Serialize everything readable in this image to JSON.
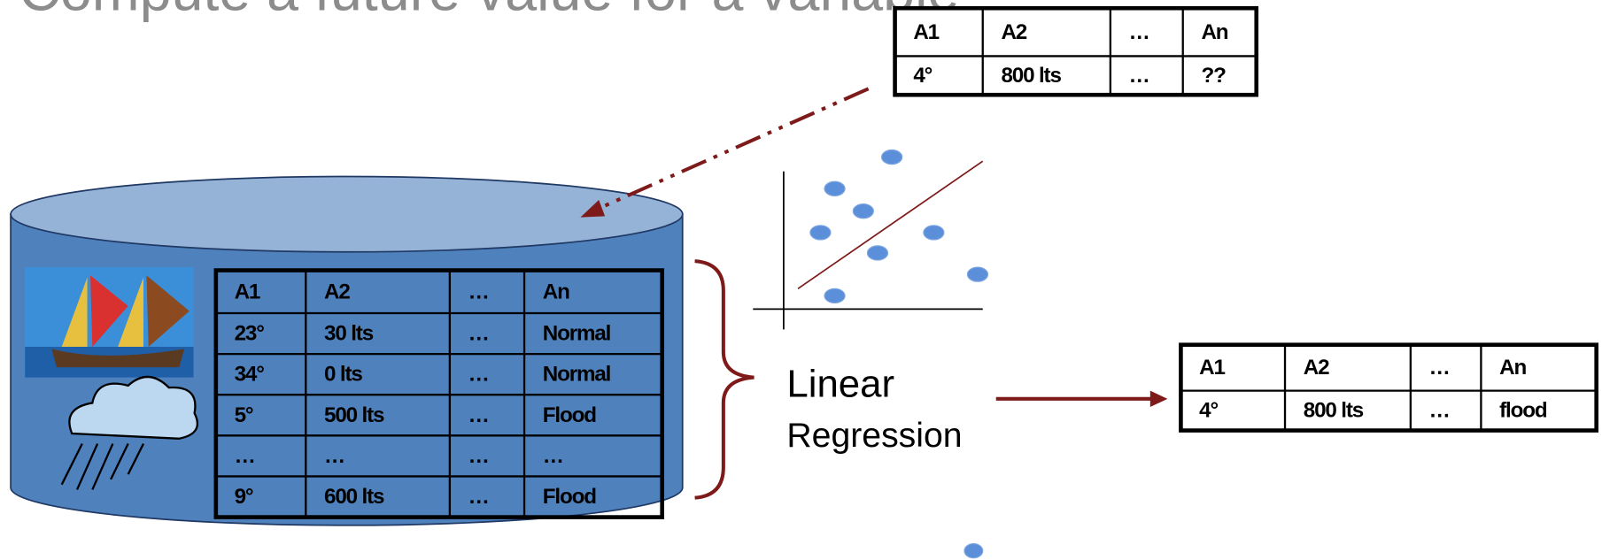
{
  "title": "Compute a future value for a variable",
  "query_table": {
    "header": [
      "A1",
      "A2",
      "…",
      "An"
    ],
    "rows": [
      [
        "4°",
        "800 lts",
        "…",
        "??"
      ]
    ]
  },
  "database_table": {
    "header": [
      "A1",
      "A2",
      "…",
      "An"
    ],
    "rows": [
      [
        "23°",
        "30 lts",
        "…",
        "Normal"
      ],
      [
        "34°",
        "0 lts",
        "…",
        "Normal"
      ],
      [
        "5°",
        "500 lts",
        "…",
        "Flood"
      ],
      [
        "…",
        "…",
        "…",
        "…"
      ],
      [
        "9°",
        "600 lts",
        "…",
        "Flood"
      ]
    ]
  },
  "method": {
    "line1": "Linear",
    "line2": "Regression"
  },
  "result_table": {
    "header": [
      "A1",
      "A2",
      "…",
      "An"
    ],
    "rows": [
      [
        "4°",
        "800 lts",
        "…",
        "flood"
      ]
    ]
  }
}
